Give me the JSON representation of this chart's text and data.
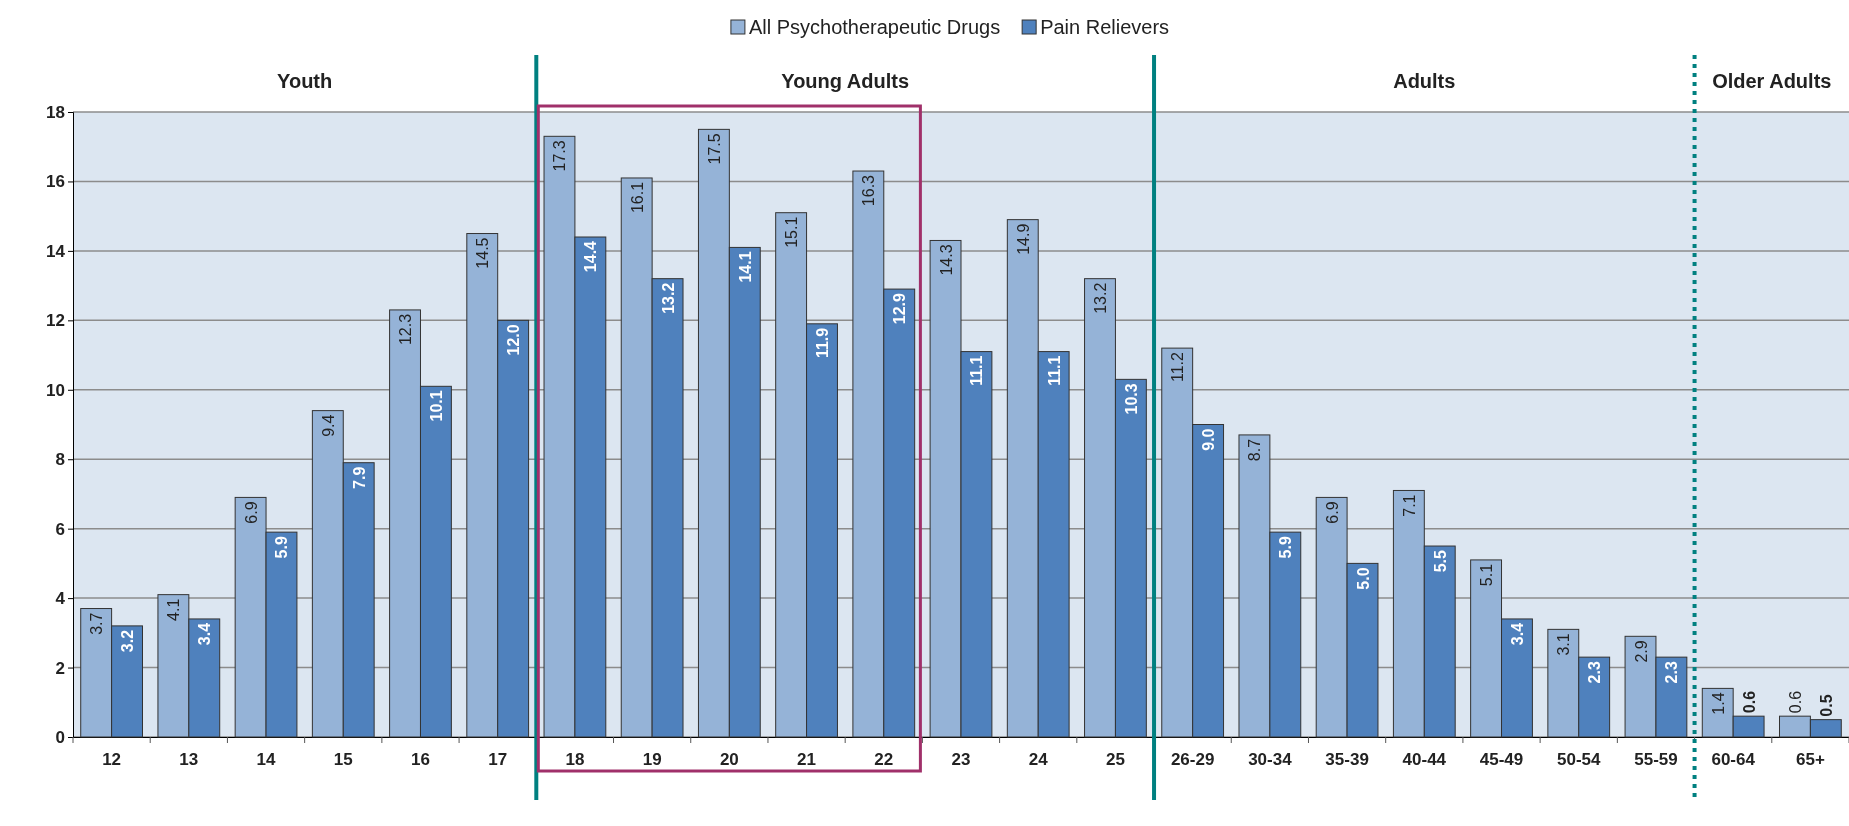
{
  "chart_data": {
    "type": "bar",
    "categories": [
      "12",
      "13",
      "14",
      "15",
      "16",
      "17",
      "18",
      "19",
      "20",
      "21",
      "22",
      "23",
      "24",
      "25",
      "26-29",
      "30-34",
      "35-39",
      "40-44",
      "45-49",
      "50-54",
      "55-59",
      "60-64",
      "65+"
    ],
    "series": [
      {
        "name": "All Psychotherapeutic Drugs",
        "color": "#95b3d7",
        "values": [
          3.7,
          4.1,
          6.9,
          9.4,
          12.3,
          14.5,
          17.3,
          16.1,
          17.5,
          15.1,
          16.3,
          14.3,
          14.9,
          13.2,
          11.2,
          8.7,
          6.9,
          7.1,
          5.1,
          3.1,
          2.9,
          1.4,
          0.6
        ],
        "value_labels": [
          "3.7",
          "4.1",
          "6.9",
          "9.4",
          "12.3",
          "14.5",
          "17.3",
          "16.1",
          "17.5",
          "15.1",
          "16.3",
          "14.3",
          "14.9",
          "13.2",
          "11.2",
          "8.7",
          "6.9",
          "7.1",
          "5.1",
          "3.1",
          "2.9",
          "1.4",
          "0.6"
        ]
      },
      {
        "name": "Pain Relievers",
        "color": "#4f81bd",
        "values": [
          3.2,
          3.4,
          5.9,
          7.9,
          10.1,
          12.0,
          14.4,
          13.2,
          14.1,
          11.9,
          12.9,
          11.1,
          11.1,
          10.3,
          9.0,
          5.9,
          5.0,
          5.5,
          3.4,
          2.3,
          2.3,
          0.6,
          0.5
        ],
        "value_labels": [
          "3.2",
          "3.4",
          "5.9",
          "7.9",
          "10.1",
          "12.0",
          "14.4",
          "13.2",
          "14.1",
          "11.9",
          "12.9",
          "11.1",
          "11.1",
          "10.3",
          "9.0",
          "5.9",
          "5.0",
          "5.5",
          "3.4",
          "2.3",
          "2.3",
          "0.6",
          "0.5"
        ]
      }
    ],
    "ylim": [
      0,
      18
    ],
    "yticks": [
      0,
      2,
      4,
      6,
      8,
      10,
      12,
      14,
      16,
      18
    ],
    "grid": "y",
    "legend": "top",
    "annotations": [
      "Youth",
      "Young Adults",
      "Adults",
      "Older Adults"
    ]
  }
}
